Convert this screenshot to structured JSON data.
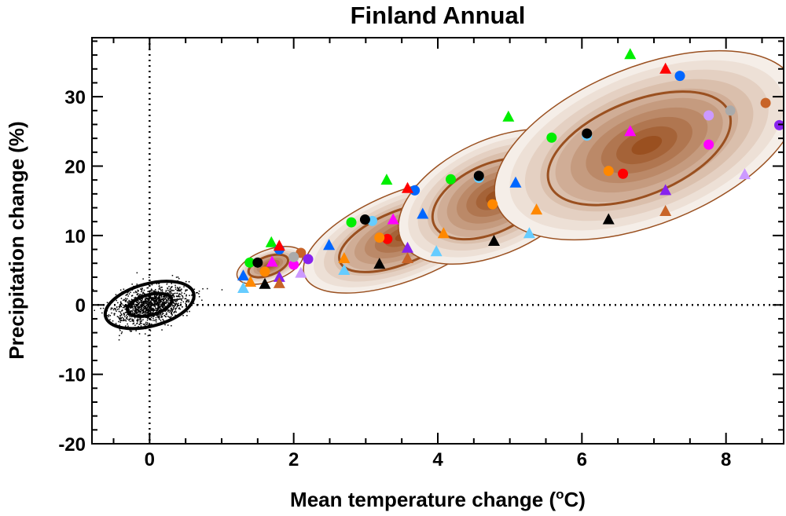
{
  "chart_data": {
    "type": "scatter",
    "title": "Finland Annual",
    "xlabel": "Mean temperature change (",
    "xlabel_unit_sup": "o",
    "xlabel_unit": "C)",
    "ylabel": "Precipitation change (%)",
    "xlim": [
      -0.8,
      8.8
    ],
    "ylim": [
      -20,
      38.5
    ],
    "xticks": [
      0,
      2,
      4,
      6,
      8
    ],
    "yticks": [
      -20,
      -10,
      0,
      10,
      20,
      30
    ],
    "grid": false,
    "reference_lines": {
      "x": 0,
      "y": 0,
      "style": "dotted"
    },
    "colors": {
      "green": "#00ee00",
      "red": "#ff0000",
      "blue": "#0066ff",
      "orange": "#ff8800",
      "black": "#000000",
      "lightblue": "#66ccff",
      "magenta": "#ff00ff",
      "purple": "#8822ee",
      "lavender": "#cc99ff",
      "grey": "#aaaaaa",
      "brown": "#c86428",
      "contour_dark": "#9a5020",
      "contour_light": "#f5eee8"
    },
    "natural_variability": {
      "center": [
        0,
        0
      ]
    },
    "distributions": [
      {
        "center": [
          1.67,
          5.7
        ]
      },
      {
        "center": [
          3.55,
          10.0
        ]
      },
      {
        "center": [
          4.8,
          15.6
        ]
      },
      {
        "center": [
          6.9,
          23.0
        ]
      }
    ],
    "points": [
      {
        "x": 1.69,
        "y": 9.0,
        "c": "green",
        "m": "triangle"
      },
      {
        "x": 1.8,
        "y": 8.0,
        "c": "blue",
        "m": "circle"
      },
      {
        "x": 1.8,
        "y": 8.5,
        "c": "red",
        "m": "triangle"
      },
      {
        "x": 2.1,
        "y": 7.5,
        "c": "brown",
        "m": "circle"
      },
      {
        "x": 1.39,
        "y": 6.1,
        "c": "green",
        "m": "circle"
      },
      {
        "x": 1.5,
        "y": 6.1,
        "c": "black",
        "m": "circle"
      },
      {
        "x": 1.7,
        "y": 6.2,
        "c": "magenta",
        "m": "triangle"
      },
      {
        "x": 2.0,
        "y": 5.8,
        "c": "magenta",
        "m": "circle"
      },
      {
        "x": 2.0,
        "y": 6.9,
        "c": "grey",
        "m": "circle"
      },
      {
        "x": 2.2,
        "y": 6.6,
        "c": "purple",
        "m": "circle"
      },
      {
        "x": 1.6,
        "y": 4.8,
        "c": "orange",
        "m": "circle"
      },
      {
        "x": 2.1,
        "y": 4.6,
        "c": "lavender",
        "m": "triangle"
      },
      {
        "x": 1.8,
        "y": 4.0,
        "c": "purple",
        "m": "triangle"
      },
      {
        "x": 1.3,
        "y": 4.2,
        "c": "blue",
        "m": "triangle"
      },
      {
        "x": 1.4,
        "y": 3.3,
        "c": "orange",
        "m": "triangle"
      },
      {
        "x": 1.8,
        "y": 3.1,
        "c": "brown",
        "m": "triangle"
      },
      {
        "x": 1.6,
        "y": 3.0,
        "c": "black",
        "m": "triangle"
      },
      {
        "x": 1.3,
        "y": 2.4,
        "c": "lightblue",
        "m": "triangle"
      },
      {
        "x": 3.29,
        "y": 18.0,
        "c": "green",
        "m": "triangle"
      },
      {
        "x": 3.68,
        "y": 16.5,
        "c": "blue",
        "m": "circle"
      },
      {
        "x": 3.58,
        "y": 16.8,
        "c": "red",
        "m": "triangle"
      },
      {
        "x": 2.8,
        "y": 11.9,
        "c": "green",
        "m": "circle"
      },
      {
        "x": 3.09,
        "y": 12.1,
        "c": "lightblue",
        "m": "circle"
      },
      {
        "x": 2.99,
        "y": 12.3,
        "c": "black",
        "m": "circle"
      },
      {
        "x": 3.38,
        "y": 12.3,
        "c": "magenta",
        "m": "triangle"
      },
      {
        "x": 3.3,
        "y": 9.5,
        "c": "red",
        "m": "circle"
      },
      {
        "x": 3.19,
        "y": 9.7,
        "c": "orange",
        "m": "circle"
      },
      {
        "x": 2.49,
        "y": 8.6,
        "c": "blue",
        "m": "triangle"
      },
      {
        "x": 3.58,
        "y": 8.2,
        "c": "purple",
        "m": "triangle"
      },
      {
        "x": 2.7,
        "y": 6.7,
        "c": "orange",
        "m": "triangle"
      },
      {
        "x": 3.58,
        "y": 6.7,
        "c": "brown",
        "m": "triangle"
      },
      {
        "x": 3.19,
        "y": 5.9,
        "c": "black",
        "m": "triangle"
      },
      {
        "x": 2.7,
        "y": 5.0,
        "c": "lightblue",
        "m": "triangle"
      },
      {
        "x": 4.98,
        "y": 27.1,
        "c": "green",
        "m": "triangle"
      },
      {
        "x": 4.18,
        "y": 18.1,
        "c": "green",
        "m": "circle"
      },
      {
        "x": 4.57,
        "y": 18.3,
        "c": "lightblue",
        "m": "circle"
      },
      {
        "x": 4.57,
        "y": 18.6,
        "c": "black",
        "m": "circle"
      },
      {
        "x": 5.08,
        "y": 17.6,
        "c": "blue",
        "m": "triangle"
      },
      {
        "x": 4.76,
        "y": 14.5,
        "c": "orange",
        "m": "circle"
      },
      {
        "x": 3.79,
        "y": 13.1,
        "c": "blue",
        "m": "triangle"
      },
      {
        "x": 5.37,
        "y": 13.7,
        "c": "orange",
        "m": "triangle"
      },
      {
        "x": 4.08,
        "y": 10.3,
        "c": "orange",
        "m": "triangle"
      },
      {
        "x": 5.27,
        "y": 10.3,
        "c": "lightblue",
        "m": "triangle"
      },
      {
        "x": 4.78,
        "y": 9.2,
        "c": "black",
        "m": "triangle"
      },
      {
        "x": 3.98,
        "y": 7.7,
        "c": "lightblue",
        "m": "triangle"
      },
      {
        "x": 6.67,
        "y": 36.1,
        "c": "green",
        "m": "triangle"
      },
      {
        "x": 7.16,
        "y": 34.0,
        "c": "red",
        "m": "triangle"
      },
      {
        "x": 7.36,
        "y": 33.0,
        "c": "blue",
        "m": "circle"
      },
      {
        "x": 8.55,
        "y": 29.1,
        "c": "brown",
        "m": "circle"
      },
      {
        "x": 8.06,
        "y": 28.0,
        "c": "grey",
        "m": "circle"
      },
      {
        "x": 7.76,
        "y": 27.3,
        "c": "lavender",
        "m": "circle"
      },
      {
        "x": 8.74,
        "y": 25.9,
        "c": "purple",
        "m": "circle"
      },
      {
        "x": 5.58,
        "y": 24.1,
        "c": "green",
        "m": "circle"
      },
      {
        "x": 6.07,
        "y": 24.4,
        "c": "lightblue",
        "m": "circle"
      },
      {
        "x": 6.07,
        "y": 24.7,
        "c": "black",
        "m": "circle"
      },
      {
        "x": 6.67,
        "y": 25.0,
        "c": "magenta",
        "m": "triangle"
      },
      {
        "x": 7.76,
        "y": 23.1,
        "c": "magenta",
        "m": "circle"
      },
      {
        "x": 6.37,
        "y": 19.3,
        "c": "orange",
        "m": "circle"
      },
      {
        "x": 6.57,
        "y": 18.9,
        "c": "red",
        "m": "circle"
      },
      {
        "x": 8.26,
        "y": 18.8,
        "c": "lavender",
        "m": "triangle"
      },
      {
        "x": 7.16,
        "y": 16.5,
        "c": "purple",
        "m": "triangle"
      },
      {
        "x": 7.16,
        "y": 13.5,
        "c": "brown",
        "m": "triangle"
      },
      {
        "x": 6.37,
        "y": 12.3,
        "c": "black",
        "m": "triangle"
      }
    ]
  }
}
